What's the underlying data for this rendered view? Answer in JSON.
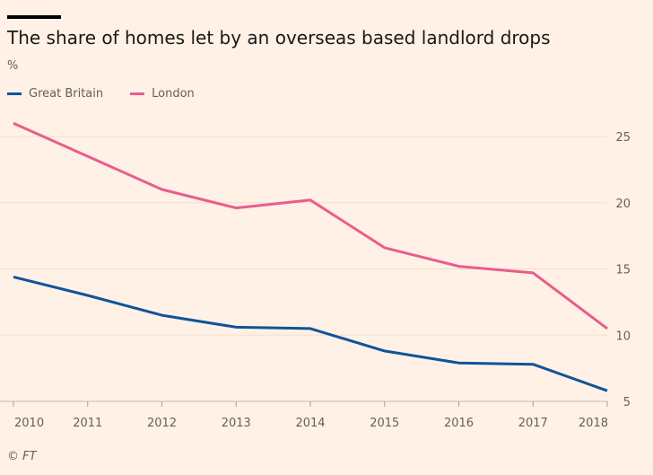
{
  "chart_data": {
    "type": "line",
    "title": "The share of homes let by an overseas based landlord drops",
    "ylabel": "%",
    "xlabel": "",
    "categories": [
      "2010",
      "2011",
      "2012",
      "2013",
      "2014",
      "2015",
      "2016",
      "2017",
      "2018"
    ],
    "series": [
      {
        "name": "Great Britain",
        "color": "#0f5499",
        "values": [
          14.4,
          13.0,
          11.5,
          10.6,
          10.5,
          8.8,
          7.9,
          7.8,
          5.8
        ]
      },
      {
        "name": "London",
        "color": "#e95d8c",
        "values": [
          26.0,
          23.5,
          21.0,
          19.6,
          20.2,
          16.6,
          15.2,
          14.7,
          10.5
        ]
      }
    ],
    "yticks": [
      "5",
      "10",
      "15",
      "20",
      "25"
    ],
    "ylim": [
      5,
      26
    ],
    "grid": true,
    "legend_position": "top-left",
    "source": "© FT"
  }
}
